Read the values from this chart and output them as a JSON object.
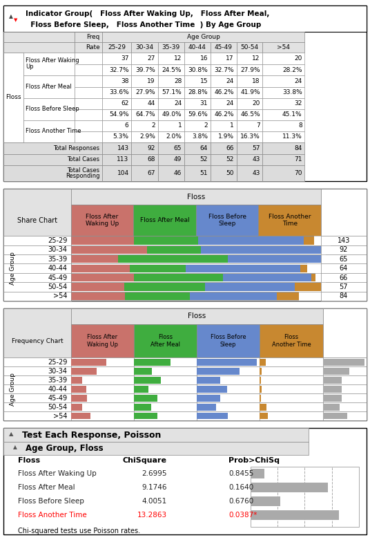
{
  "age_groups": [
    "25-29",
    "30-34",
    "35-39",
    "40-44",
    "45-49",
    "50-54",
    ">54"
  ],
  "floss_categories": [
    "Floss After Waking Up",
    "Floss After Meal",
    "Floss Before Sleep",
    "Floss Another Time"
  ],
  "table_data": {
    "Floss After Waking Up": {
      "freq": [
        37,
        27,
        12,
        16,
        17,
        12,
        20
      ],
      "rate": [
        "32.7%",
        "39.7%",
        "24.5%",
        "30.8%",
        "32.7%",
        "27.9%",
        "28.2%"
      ]
    },
    "Floss After Meal": {
      "freq": [
        38,
        19,
        28,
        15,
        24,
        18,
        24
      ],
      "rate": [
        "33.6%",
        "27.9%",
        "57.1%",
        "28.8%",
        "46.2%",
        "41.9%",
        "33.8%"
      ]
    },
    "Floss Before Sleep": {
      "freq": [
        62,
        44,
        24,
        31,
        24,
        20,
        32
      ],
      "rate": [
        "54.9%",
        "64.7%",
        "49.0%",
        "59.6%",
        "46.2%",
        "46.5%",
        "45.1%"
      ]
    },
    "Floss Another Time": {
      "freq": [
        6,
        2,
        1,
        2,
        1,
        7,
        8
      ],
      "rate": [
        "5.3%",
        "2.9%",
        "2.0%",
        "3.8%",
        "1.9%",
        "16.3%",
        "11.3%"
      ]
    }
  },
  "total_responses": [
    143,
    92,
    65,
    64,
    66,
    57,
    84
  ],
  "total_cases": [
    113,
    68,
    49,
    52,
    52,
    43,
    71
  ],
  "total_cases_responding": [
    104,
    67,
    46,
    51,
    50,
    43,
    70
  ],
  "share_chart_data": {
    "25-29": [
      32.7,
      33.6,
      54.9,
      5.3
    ],
    "30-34": [
      39.7,
      27.9,
      64.7,
      2.9
    ],
    "35-39": [
      24.5,
      57.1,
      49.0,
      2.0
    ],
    "40-44": [
      30.8,
      28.8,
      59.6,
      3.8
    ],
    "45-49": [
      32.7,
      46.2,
      46.2,
      1.9
    ],
    "50-54": [
      27.9,
      41.9,
      46.5,
      16.3
    ],
    ">54": [
      28.2,
      33.8,
      45.1,
      11.3
    ]
  },
  "freq_chart_data": {
    "25-29": [
      37,
      38,
      62,
      6
    ],
    "30-34": [
      27,
      19,
      44,
      2
    ],
    "35-39": [
      12,
      28,
      24,
      1
    ],
    "40-44": [
      16,
      15,
      31,
      2
    ],
    "45-49": [
      17,
      24,
      24,
      1
    ],
    "50-54": [
      12,
      18,
      20,
      7
    ],
    ">54": [
      20,
      24,
      32,
      8
    ]
  },
  "colors": {
    "Floss After Waking Up": "#C9726B",
    "Floss After Meal": "#3FAD3F",
    "Floss Before Sleep": "#6688CC",
    "Floss Another Time": "#C88830",
    "gray": "#AAAAAA",
    "light_gray": "#E2E2E2",
    "footer_bg": "#DCDCDC",
    "white": "#FFFFFF"
  },
  "chi_square": {
    "Floss After Waking Up": {
      "chi": 2.6995,
      "prob": 0.8455,
      "sig": false
    },
    "Floss After Meal": {
      "chi": 9.1746,
      "prob": 0.164,
      "sig": false
    },
    "Floss Before Sleep": {
      "chi": 4.0051,
      "prob": 0.676,
      "sig": false
    },
    "Floss Another Time": {
      "chi": 13.2863,
      "prob": 0.0387,
      "sig": true
    }
  },
  "share_max": 135.0,
  "freq_max": 65.0,
  "freq_gray_max": 150.0
}
